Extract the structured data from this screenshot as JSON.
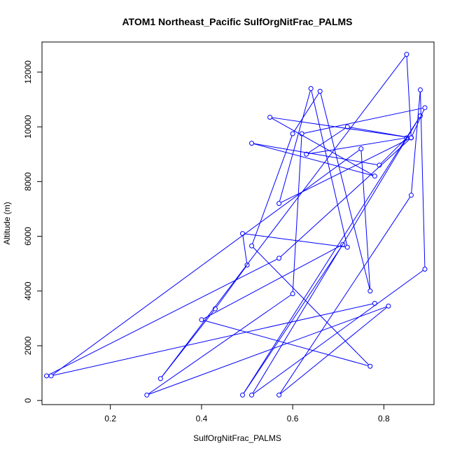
{
  "chart_data": {
    "type": "line",
    "title": "ATOM1 Northeast_Pacific SulfOrgNitFrac_PALMS",
    "xlabel": "SulfOrgNitFrac_PALMS",
    "ylabel": "Altitude (m)",
    "xlim": [
      0.05,
      0.91
    ],
    "ylim": [
      -150,
      13100
    ],
    "x_ticks": [
      0.2,
      0.4,
      0.6,
      0.8
    ],
    "x_tick_labels": [
      "0.2",
      "0.4",
      "0.6",
      "0.8"
    ],
    "y_ticks": [
      0,
      2000,
      4000,
      6000,
      8000,
      10000,
      12000
    ],
    "y_tick_labels": [
      "0",
      "2000",
      "4000",
      "6000",
      "8000",
      "10000",
      "12000"
    ],
    "marker": "open-circle",
    "color": "#0000ff",
    "grid": false,
    "series": [
      {
        "points": [
          [
            0.06,
            900
          ],
          [
            0.57,
            5200
          ],
          [
            0.86,
            9600
          ],
          [
            0.55,
            10350
          ],
          [
            0.78,
            8200
          ],
          [
            0.51,
            9400
          ],
          [
            0.79,
            8600
          ],
          [
            0.85,
            9600
          ],
          [
            0.63,
            9000
          ],
          [
            0.72,
            10000
          ],
          [
            0.86,
            9600
          ],
          [
            0.57,
            7200
          ],
          [
            0.64,
            11400
          ],
          [
            0.72,
            5600
          ],
          [
            0.49,
            6100
          ],
          [
            0.5,
            4950
          ],
          [
            0.43,
            3350
          ],
          [
            0.31,
            800
          ],
          [
            0.85,
            12650
          ],
          [
            0.86,
            9600
          ],
          [
            0.89,
            10700
          ],
          [
            0.62,
            9750
          ],
          [
            0.6,
            3900
          ],
          [
            0.28,
            200
          ],
          [
            0.81,
            3450
          ],
          [
            0.57,
            200
          ],
          [
            0.86,
            7500
          ],
          [
            0.88,
            11350
          ],
          [
            0.89,
            4800
          ],
          [
            0.51,
            200
          ],
          [
            0.88,
            10400
          ],
          [
            0.49,
            200
          ],
          [
            0.71,
            5700
          ],
          [
            0.4,
            2950
          ],
          [
            0.77,
            1250
          ],
          [
            0.51,
            5650
          ],
          [
            0.6,
            9750
          ],
          [
            0.66,
            11300
          ],
          [
            0.77,
            4000
          ],
          [
            0.75,
            9200
          ],
          [
            0.07,
            900
          ],
          [
            0.78,
            3550
          ]
        ]
      }
    ]
  }
}
